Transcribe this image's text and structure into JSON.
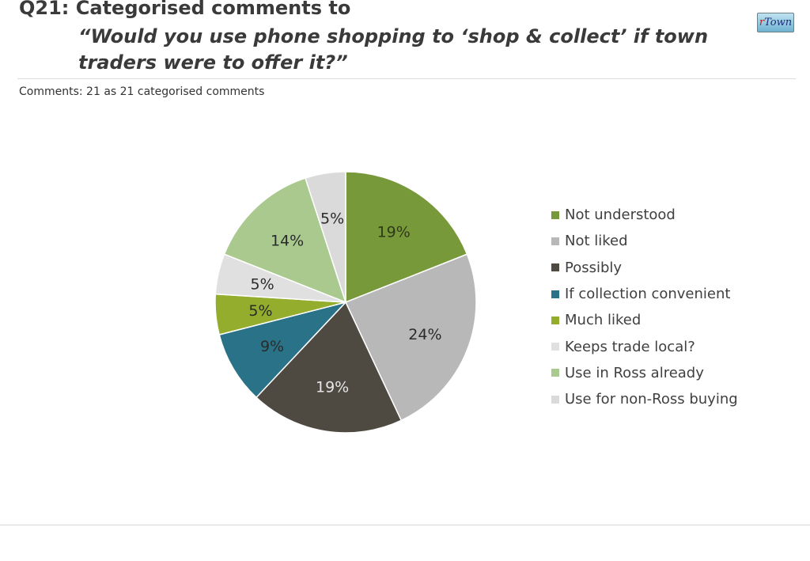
{
  "header": {
    "title_line1": "Q21: Categorised comments to",
    "title_line2": "“Would you use phone shopping to ‘shop & collect’ if town traders were to offer it?”",
    "subtitle": "Comments: 21 as 21 categorised comments",
    "logo": "rTown"
  },
  "chart_data": {
    "type": "pie",
    "categories": [
      "Not understood",
      "Not liked",
      "Possibly",
      "If collection convenient",
      "Much liked",
      "Keeps trade local?",
      "Use in Ross already",
      "Use for non-Ross buying"
    ],
    "values": [
      19,
      24,
      19,
      9,
      5,
      5,
      14,
      5
    ],
    "labels": [
      "19%",
      "24%",
      "19%",
      "9%",
      "5%",
      "5%",
      "14%",
      "5%"
    ],
    "colors": [
      "#78993a",
      "#b8b8b8",
      "#4e4a42",
      "#2a7287",
      "#94ad2c",
      "#e0e0e0",
      "#a9c98e",
      "#dadada"
    ],
    "label_colors": [
      "#2e3a18",
      "#2b2b2b",
      "#e6e6e6",
      "#2b2b2b",
      "#2b2b2b",
      "#2b2b2b",
      "#2b2b2b",
      "#2b2b2b"
    ],
    "legend_position": "right"
  }
}
